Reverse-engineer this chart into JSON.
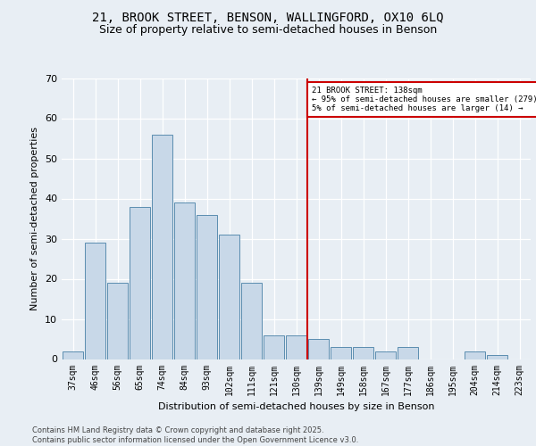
{
  "title_line1": "21, BROOK STREET, BENSON, WALLINGFORD, OX10 6LQ",
  "title_line2": "Size of property relative to semi-detached houses in Benson",
  "xlabel": "Distribution of semi-detached houses by size in Benson",
  "ylabel": "Number of semi-detached properties",
  "footer_line1": "Contains HM Land Registry data © Crown copyright and database right 2025.",
  "footer_line2": "Contains public sector information licensed under the Open Government Licence v3.0.",
  "bar_labels": [
    "37sqm",
    "46sqm",
    "56sqm",
    "65sqm",
    "74sqm",
    "84sqm",
    "93sqm",
    "102sqm",
    "111sqm",
    "121sqm",
    "130sqm",
    "139sqm",
    "149sqm",
    "158sqm",
    "167sqm",
    "177sqm",
    "186sqm",
    "195sqm",
    "204sqm",
    "214sqm",
    "223sqm"
  ],
  "bar_values": [
    2,
    29,
    19,
    38,
    56,
    39,
    36,
    31,
    19,
    6,
    6,
    5,
    3,
    3,
    2,
    3,
    0,
    0,
    2,
    1,
    0
  ],
  "bar_color": "#c8d8e8",
  "bar_edge_color": "#5b8db0",
  "vline_color": "#cc0000",
  "annotation_title": "21 BROOK STREET: 138sqm",
  "annotation_line2": "← 95% of semi-detached houses are smaller (279)",
  "annotation_line3": "5% of semi-detached houses are larger (14) →",
  "annotation_box_color": "#ffffff",
  "annotation_box_edge": "#cc0000",
  "ylim": [
    0,
    70
  ],
  "yticks": [
    0,
    10,
    20,
    30,
    40,
    50,
    60,
    70
  ],
  "background_color": "#e8eef4",
  "plot_background": "#e8eef4",
  "title1_fontsize": 10,
  "title2_fontsize": 9,
  "ylabel_fontsize": 8,
  "xlabel_fontsize": 8,
  "tick_fontsize": 7,
  "footer_fontsize": 6
}
